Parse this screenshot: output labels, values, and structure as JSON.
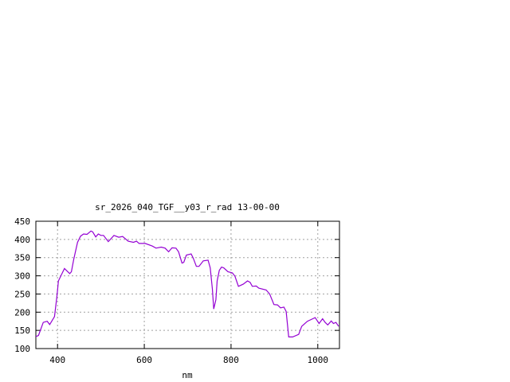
{
  "chart_data": {
    "type": "line",
    "title": "sr_2026_040_TGF__y03_r_rad 13-00-00",
    "xlabel": "nm",
    "ylabel": "",
    "xlim": [
      350,
      1050
    ],
    "ylim": [
      100,
      450
    ],
    "xticks": [
      400,
      600,
      800,
      1000
    ],
    "yticks": [
      100,
      150,
      200,
      250,
      300,
      350,
      400,
      450
    ],
    "grid": true,
    "legend": "none",
    "line_color": "#9400d3",
    "series": [
      {
        "x": [
          350,
          356,
          367,
          376,
          382,
          393,
          399,
          402,
          416,
          428,
          432,
          437,
          446,
          453,
          460,
          468,
          477,
          481,
          488,
          494,
          500,
          506,
          517,
          530,
          541,
          550,
          563,
          575,
          582,
          588,
          602,
          618,
          627,
          639,
          648,
          656,
          664,
          673,
          679,
          687,
          691,
          697,
          708,
          713,
          720,
          726,
          736,
          747,
          752,
          757,
          760,
          765,
          768,
          773,
          778,
          783,
          793,
          803,
          809,
          817,
          828,
          838,
          844,
          849,
          858,
          864,
          881,
          889,
          899,
          907,
          914,
          922,
          927,
          933,
          942,
          956,
          963,
          976,
          994,
          1003,
          1011,
          1017,
          1023,
          1031,
          1036,
          1042,
          1048
        ],
        "y": [
          133,
          136,
          172,
          175,
          166,
          188,
          249,
          286,
          320,
          306,
          311,
          344,
          392,
          409,
          415,
          414,
          423,
          421,
          407,
          415,
          411,
          411,
          394,
          411,
          406,
          408,
          395,
          392,
          395,
          389,
          389,
          382,
          376,
          379,
          376,
          366,
          377,
          376,
          366,
          335,
          337,
          357,
          360,
          348,
          326,
          326,
          341,
          343,
          322,
          264,
          209,
          234,
          286,
          315,
          324,
          322,
          311,
          308,
          299,
          271,
          277,
          286,
          282,
          271,
          272,
          266,
          261,
          250,
          221,
          220,
          212,
          214,
          202,
          132,
          132,
          139,
          161,
          175,
          185,
          169,
          182,
          172,
          165,
          176,
          169,
          172,
          161
        ]
      }
    ]
  }
}
